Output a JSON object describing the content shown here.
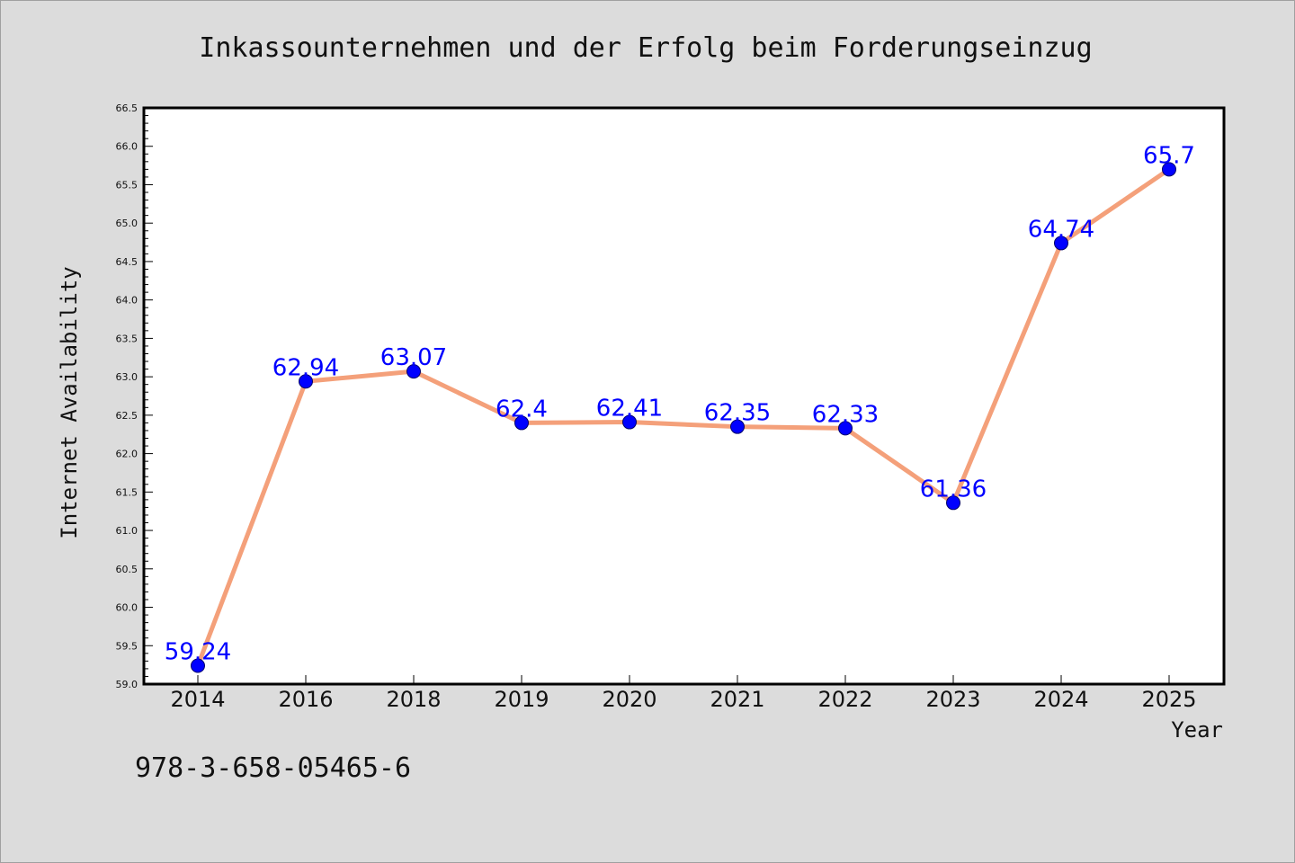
{
  "chart_data": {
    "type": "line",
    "title": "Inkassounternehmen und der Erfolg beim Forderungseinzug",
    "xlabel": "Year",
    "ylabel": "Internet Availability",
    "categories": [
      "2014",
      "2016",
      "2018",
      "2019",
      "2020",
      "2021",
      "2022",
      "2023",
      "2024",
      "2025"
    ],
    "values": [
      59.24,
      62.94,
      63.07,
      62.4,
      62.41,
      62.35,
      62.33,
      61.36,
      64.74,
      65.7
    ],
    "data_labels": [
      "59.24",
      "62.94",
      "63.07",
      "62.4",
      "62.41",
      "62.35",
      "62.33",
      "61.36",
      "64.74",
      "65.7"
    ],
    "ylim": [
      59.0,
      66.5
    ],
    "yticks": [
      "59.0",
      "59.5",
      "60.0",
      "60.5",
      "61.0",
      "61.5",
      "62.0",
      "62.5",
      "63.0",
      "63.5",
      "64.0",
      "64.5",
      "65.0",
      "65.5",
      "66.0",
      "66.5"
    ],
    "grid": false,
    "line_color": "#f4a07a",
    "marker_color": "#0000ff",
    "label_color": "#0000ff",
    "background_color": "#dcdcdc",
    "plot_background_color": "#ffffff"
  },
  "footer": {
    "isbn": "978-3-658-05465-6"
  }
}
